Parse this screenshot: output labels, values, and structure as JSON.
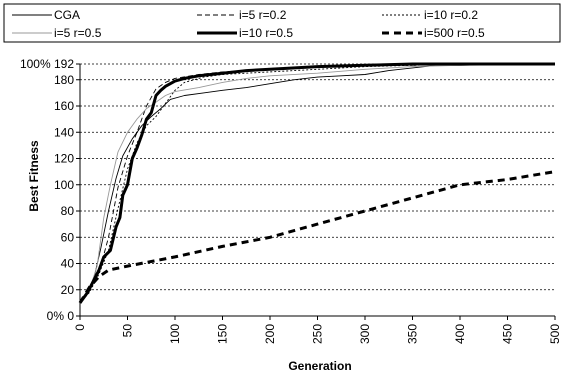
{
  "chart_data": {
    "type": "line",
    "title": "",
    "xlabel": "Generation",
    "ylabel": "Best Fitness",
    "xlim": [
      0,
      500
    ],
    "ylim": [
      0,
      192
    ],
    "x_ticks": [
      0,
      50,
      100,
      150,
      200,
      250,
      300,
      350,
      400,
      450,
      500
    ],
    "y_ticks": [
      0,
      20,
      40,
      60,
      80,
      100,
      120,
      140,
      160,
      180,
      192
    ],
    "y_tick_labels": [
      "0% 0",
      "20",
      "40",
      "60",
      "80",
      "100",
      "120",
      "140",
      "160",
      "180",
      "100% 192"
    ],
    "grid": "horizontal dotted",
    "legend_position": "top",
    "series": [
      {
        "name": "CGA",
        "style": "thin-solid",
        "points": [
          [
            0,
            10
          ],
          [
            8,
            18
          ],
          [
            15,
            30
          ],
          [
            22,
            52
          ],
          [
            30,
            80
          ],
          [
            38,
            105
          ],
          [
            45,
            122
          ],
          [
            55,
            135
          ],
          [
            65,
            145
          ],
          [
            75,
            152
          ],
          [
            85,
            158
          ],
          [
            95,
            165
          ],
          [
            110,
            168
          ],
          [
            130,
            170
          ],
          [
            150,
            172
          ],
          [
            175,
            174
          ],
          [
            200,
            177
          ],
          [
            225,
            180
          ],
          [
            250,
            182
          ],
          [
            275,
            183
          ],
          [
            300,
            184
          ],
          [
            325,
            187
          ],
          [
            350,
            189
          ],
          [
            375,
            191
          ],
          [
            400,
            191
          ],
          [
            450,
            192
          ],
          [
            500,
            192
          ]
        ]
      },
      {
        "name": "i=5 r=0.2",
        "style": "dash",
        "points": [
          [
            0,
            10
          ],
          [
            10,
            20
          ],
          [
            20,
            33
          ],
          [
            30,
            60
          ],
          [
            40,
            98
          ],
          [
            50,
            122
          ],
          [
            60,
            140
          ],
          [
            70,
            160
          ],
          [
            80,
            173
          ],
          [
            90,
            178
          ],
          [
            100,
            181
          ],
          [
            125,
            184
          ],
          [
            150,
            186
          ],
          [
            200,
            188
          ],
          [
            250,
            190
          ],
          [
            300,
            191
          ],
          [
            350,
            191
          ],
          [
            400,
            192
          ],
          [
            500,
            192
          ]
        ]
      },
      {
        "name": "i=10 r=0.2",
        "style": "dot",
        "points": [
          [
            0,
            10
          ],
          [
            10,
            18
          ],
          [
            20,
            32
          ],
          [
            30,
            50
          ],
          [
            40,
            82
          ],
          [
            50,
            112
          ],
          [
            60,
            132
          ],
          [
            70,
            145
          ],
          [
            80,
            152
          ],
          [
            90,
            162
          ],
          [
            100,
            172
          ],
          [
            110,
            178
          ],
          [
            130,
            182
          ],
          [
            150,
            184
          ],
          [
            175,
            185
          ],
          [
            200,
            186
          ],
          [
            250,
            188
          ],
          [
            300,
            190
          ],
          [
            350,
            191
          ],
          [
            400,
            192
          ],
          [
            500,
            192
          ]
        ]
      },
      {
        "name": "i=5 r=0.5",
        "style": "thin-gray",
        "points": [
          [
            0,
            10
          ],
          [
            10,
            20
          ],
          [
            18,
            38
          ],
          [
            25,
            75
          ],
          [
            32,
            100
          ],
          [
            40,
            125
          ],
          [
            50,
            140
          ],
          [
            60,
            150
          ],
          [
            70,
            158
          ],
          [
            80,
            163
          ],
          [
            90,
            168
          ],
          [
            100,
            171
          ],
          [
            125,
            174
          ],
          [
            150,
            178
          ],
          [
            175,
            181
          ],
          [
            200,
            183
          ],
          [
            250,
            185
          ],
          [
            300,
            188
          ],
          [
            350,
            190
          ],
          [
            400,
            191
          ],
          [
            500,
            192
          ]
        ]
      },
      {
        "name": "i=10 r=0.5",
        "style": "thick-solid",
        "points": [
          [
            0,
            10
          ],
          [
            8,
            18
          ],
          [
            15,
            28
          ],
          [
            20,
            35
          ],
          [
            25,
            45
          ],
          [
            32,
            50
          ],
          [
            38,
            68
          ],
          [
            42,
            75
          ],
          [
            45,
            92
          ],
          [
            50,
            100
          ],
          [
            55,
            120
          ],
          [
            60,
            128
          ],
          [
            65,
            138
          ],
          [
            70,
            150
          ],
          [
            75,
            155
          ],
          [
            80,
            168
          ],
          [
            85,
            172
          ],
          [
            90,
            175
          ],
          [
            100,
            179
          ],
          [
            110,
            181
          ],
          [
            125,
            183
          ],
          [
            150,
            185
          ],
          [
            175,
            187
          ],
          [
            200,
            188
          ],
          [
            250,
            190
          ],
          [
            300,
            191
          ],
          [
            350,
            192
          ],
          [
            400,
            192
          ],
          [
            500,
            192
          ]
        ]
      },
      {
        "name": "i=500 r=0.5",
        "style": "thick-dash",
        "points": [
          [
            0,
            10
          ],
          [
            10,
            22
          ],
          [
            20,
            30
          ],
          [
            30,
            35
          ],
          [
            50,
            38
          ],
          [
            100,
            45
          ],
          [
            150,
            53
          ],
          [
            200,
            60
          ],
          [
            250,
            70
          ],
          [
            300,
            80
          ],
          [
            350,
            90
          ],
          [
            400,
            100
          ],
          [
            450,
            104
          ],
          [
            500,
            110
          ]
        ]
      }
    ]
  }
}
